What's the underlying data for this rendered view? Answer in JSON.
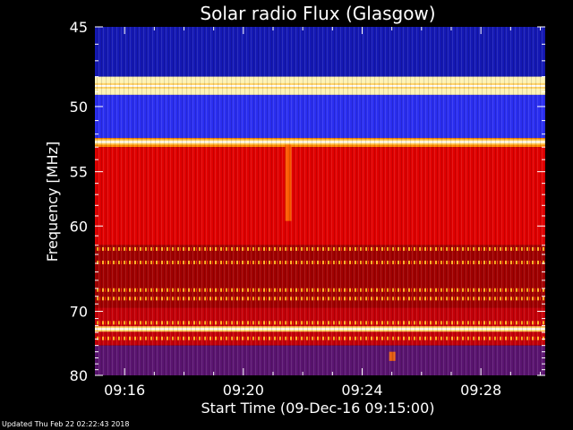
{
  "chart_data": {
    "type": "heatmap",
    "title": "Solar radio Flux (Glasgow)",
    "xlabel": "Start Time (09-Dec-16 09:15:00)",
    "ylabel": "Frequency [MHz]",
    "x_unit": "time of day",
    "xlim": [
      "09:15:00",
      "09:30:10"
    ],
    "x_ticks": [
      "09:16",
      "09:20",
      "09:24",
      "09:28"
    ],
    "y_unit": "MHz",
    "ylim": [
      45,
      80
    ],
    "y_ticks": [
      45,
      50,
      55,
      60,
      70,
      80
    ],
    "y_scale": "reciprocal (1/f, frequency increasing downward)",
    "colormap": "blue-black-red-yellow-white (low to high intensity)",
    "grid": false,
    "frequency_bands": [
      {
        "from_mhz": 45.0,
        "to_mhz": 48.0,
        "level": "low",
        "color": "#1418b4"
      },
      {
        "from_mhz": 48.0,
        "to_mhz": 49.2,
        "level": "very high",
        "color": "#fff3b4"
      },
      {
        "from_mhz": 49.2,
        "to_mhz": 52.3,
        "level": "low",
        "color": "#2a2ef0"
      },
      {
        "from_mhz": 52.3,
        "to_mhz": 53.0,
        "level": "high",
        "color": "#ff8a00"
      },
      {
        "from_mhz": 53.0,
        "to_mhz": 62.0,
        "level": "medium-high",
        "color": "#e00000"
      },
      {
        "from_mhz": 62.0,
        "to_mhz": 69.5,
        "level": "medium",
        "color": "#a00000"
      },
      {
        "from_mhz": 69.5,
        "to_mhz": 75.0,
        "level": "medium",
        "color": "#c40008"
      },
      {
        "from_mhz": 75.0,
        "to_mhz": 80.0,
        "level": "low-medium",
        "color": "#5a1470"
      }
    ],
    "bright_lines_mhz": [
      48.6,
      52.6,
      72.5
    ],
    "striped_lines_mhz": [
      62.4,
      63.9,
      67.2,
      68.3,
      71.6,
      73.9
    ],
    "events": [
      {
        "time": "09:21:30",
        "from_mhz": 52.8,
        "to_mhz": 59.5,
        "description": "short vertical burst"
      },
      {
        "time": "09:25:00",
        "from_mhz": 76.0,
        "to_mhz": 77.5,
        "description": "small bright patch"
      }
    ]
  },
  "footer": {
    "updated": "Updated Thu Feb 22 02:22:43 2018"
  }
}
